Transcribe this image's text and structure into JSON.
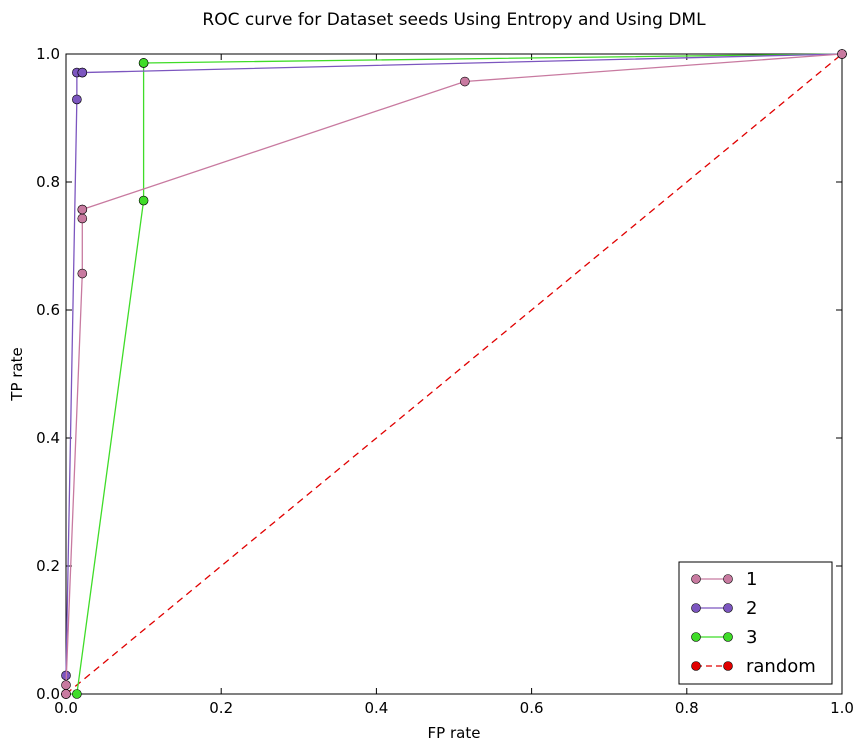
{
  "chart_data": {
    "type": "line",
    "title": "ROC curve for Dataset seeds Using Entropy and Using DML",
    "xlabel": "FP rate",
    "ylabel": "TP rate",
    "xlim": [
      0.0,
      1.0
    ],
    "ylim": [
      0.0,
      1.0
    ],
    "xticks": [
      "0.0",
      "0.2",
      "0.4",
      "0.6",
      "0.8",
      "1.0"
    ],
    "yticks": [
      "0.0",
      "0.2",
      "0.4",
      "0.6",
      "0.8",
      "1.0"
    ],
    "grid": false,
    "legend_position": "lower-right",
    "series": [
      {
        "name": "1",
        "color": "#c87aa0",
        "marker": "circle",
        "linestyle": "solid",
        "x": [
          0.0,
          0.0,
          0.021,
          0.021,
          0.021,
          0.021,
          0.514,
          1.0
        ],
        "y": [
          0.0,
          0.014,
          0.657,
          0.743,
          0.757,
          0.757,
          0.957,
          1.0
        ]
      },
      {
        "name": "2",
        "color": "#7c56bf",
        "marker": "circle",
        "linestyle": "solid",
        "x": [
          0.0,
          0.0,
          0.014,
          0.014,
          0.021,
          0.021,
          1.0
        ],
        "y": [
          0.0,
          0.029,
          0.929,
          0.971,
          0.971,
          0.971,
          1.0
        ]
      },
      {
        "name": "3",
        "color": "#3fdc28",
        "marker": "circle",
        "linestyle": "solid",
        "x": [
          0.0,
          0.014,
          0.1,
          0.1,
          0.1,
          1.0
        ],
        "y": [
          0.0,
          0.0,
          0.771,
          0.986,
          0.986,
          1.0
        ]
      },
      {
        "name": "random",
        "color": "#e00000",
        "marker": "circle",
        "linestyle": "dashed",
        "x": [
          0.0,
          1.0
        ],
        "y": [
          0.0,
          1.0
        ]
      }
    ]
  }
}
